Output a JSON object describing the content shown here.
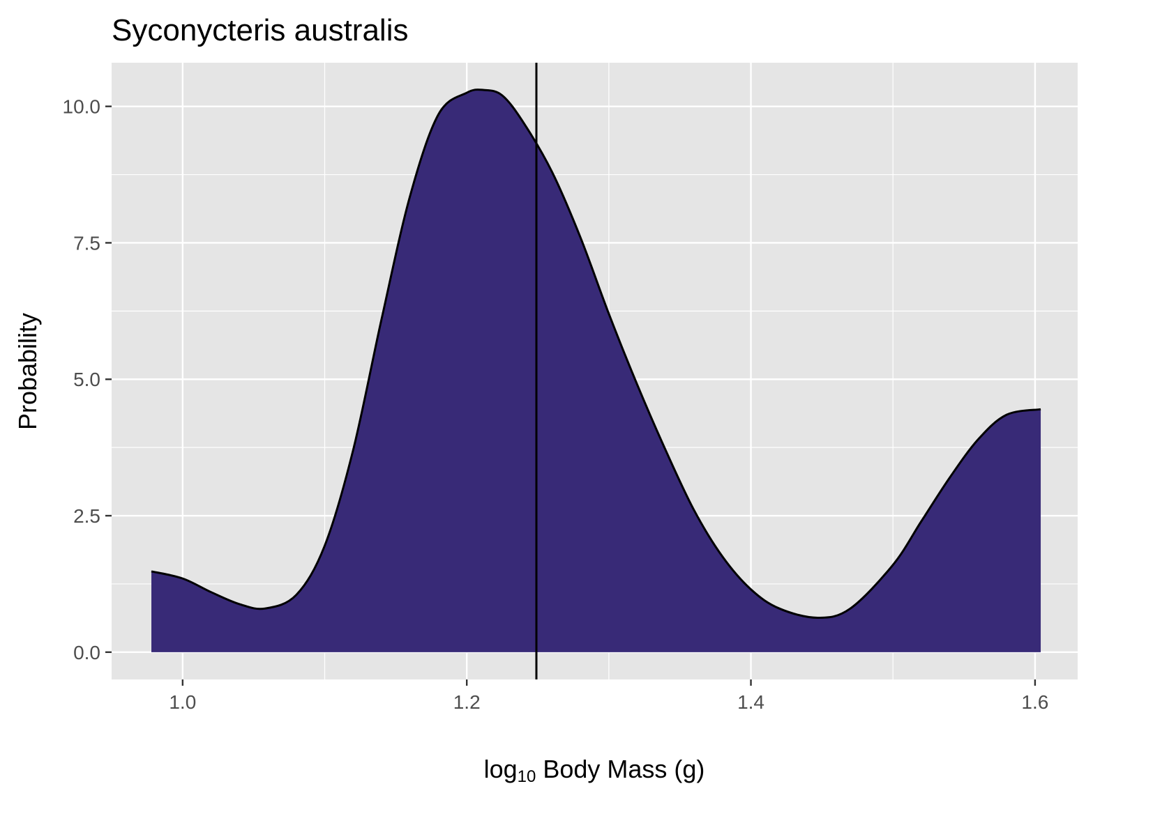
{
  "chart_data": {
    "type": "area",
    "title": "Syconycteris australis",
    "xlabel": {
      "prefix": "log",
      "subscript": "10",
      "suffix": " Body Mass (g)"
    },
    "ylabel": "Probability",
    "xlim": [
      0.95,
      1.63
    ],
    "ylim": [
      -0.5,
      10.8
    ],
    "x_ticks": [
      1.0,
      1.2,
      1.4,
      1.6
    ],
    "x_tick_labels": [
      "1.0",
      "1.2",
      "1.4",
      "1.6"
    ],
    "x_minor_ticks": [
      1.1,
      1.3,
      1.5
    ],
    "y_ticks": [
      0.0,
      2.5,
      5.0,
      7.5,
      10.0
    ],
    "y_tick_labels": [
      "0.0",
      "2.5",
      "5.0",
      "7.5",
      "10.0"
    ],
    "y_minor_ticks": [
      1.25,
      3.75,
      6.25,
      8.75
    ],
    "grid": true,
    "panel_background": "#e5e5e5",
    "fill_color": "#382a77",
    "line_color": "#000000",
    "vline_x": 1.249,
    "series": [
      {
        "x": [
          0.978,
          1.0,
          1.02,
          1.04,
          1.058,
          1.08,
          1.1,
          1.12,
          1.14,
          1.16,
          1.18,
          1.2,
          1.212,
          1.225,
          1.24,
          1.26,
          1.28,
          1.3,
          1.32,
          1.34,
          1.36,
          1.38,
          1.4,
          1.42,
          1.447,
          1.47,
          1.5,
          1.52,
          1.54,
          1.56,
          1.58,
          1.604
        ],
        "values": [
          1.48,
          1.35,
          1.1,
          0.88,
          0.8,
          1.05,
          1.95,
          3.7,
          6.1,
          8.35,
          9.85,
          10.25,
          10.3,
          10.2,
          9.7,
          8.8,
          7.6,
          6.2,
          4.9,
          3.7,
          2.6,
          1.75,
          1.15,
          0.8,
          0.63,
          0.8,
          1.6,
          2.4,
          3.2,
          3.9,
          4.35,
          4.45
        ]
      }
    ]
  }
}
